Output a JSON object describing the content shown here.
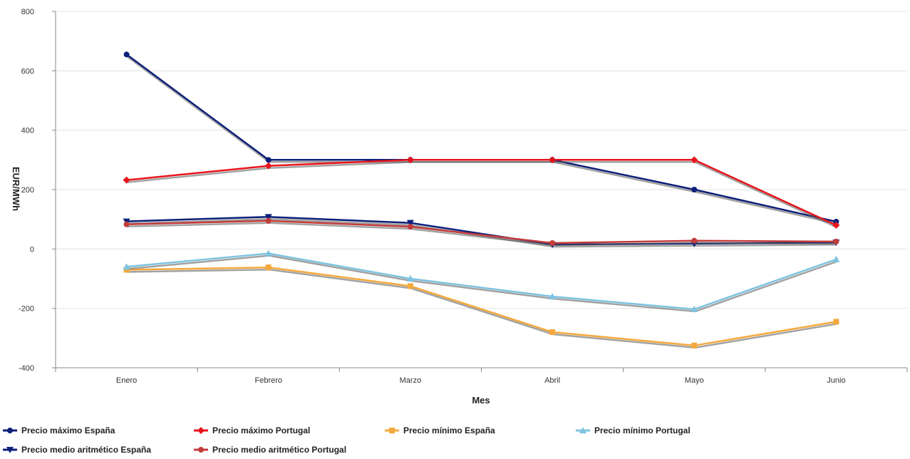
{
  "chart_data": {
    "type": "line",
    "categories": [
      "Enero",
      "Febrero",
      "Marzo",
      "Abril",
      "Mayo",
      "Junio"
    ],
    "xlabel": "Mes",
    "ylabel": "EUR/MWh",
    "ylim": [
      -400,
      800
    ],
    "yticks": [
      -400,
      -200,
      0,
      200,
      400,
      600,
      800
    ],
    "grid": true,
    "legend_position": "bottom",
    "series": [
      {
        "name": "Precio máximo España",
        "color": "#0b1f7a",
        "marker": "circle",
        "values": [
          655,
          300,
          300,
          300,
          200,
          92
        ]
      },
      {
        "name": "Precio máximo Portugal",
        "color": "#e8141c",
        "marker": "diamond",
        "values": [
          232,
          280,
          300,
          300,
          300,
          80
        ]
      },
      {
        "name": "Precio mínimo España",
        "color": "#f5a83d",
        "marker": "square",
        "values": [
          -70,
          -62,
          -125,
          -280,
          -325,
          -245
        ]
      },
      {
        "name": "Precio mínimo Portugal",
        "color": "#7ec3e0",
        "marker": "triangle",
        "values": [
          -60,
          -15,
          -100,
          -160,
          -203,
          -35
        ]
      },
      {
        "name": "Precio medio aritmético España",
        "color": "#0b1f7a",
        "marker": "triangle-down",
        "values": [
          93,
          108,
          88,
          15,
          18,
          22
        ]
      },
      {
        "name": "Precio medio aritmético Portugal",
        "color": "#c33b3b",
        "marker": "circle",
        "values": [
          83,
          95,
          75,
          20,
          28,
          25
        ]
      }
    ]
  }
}
